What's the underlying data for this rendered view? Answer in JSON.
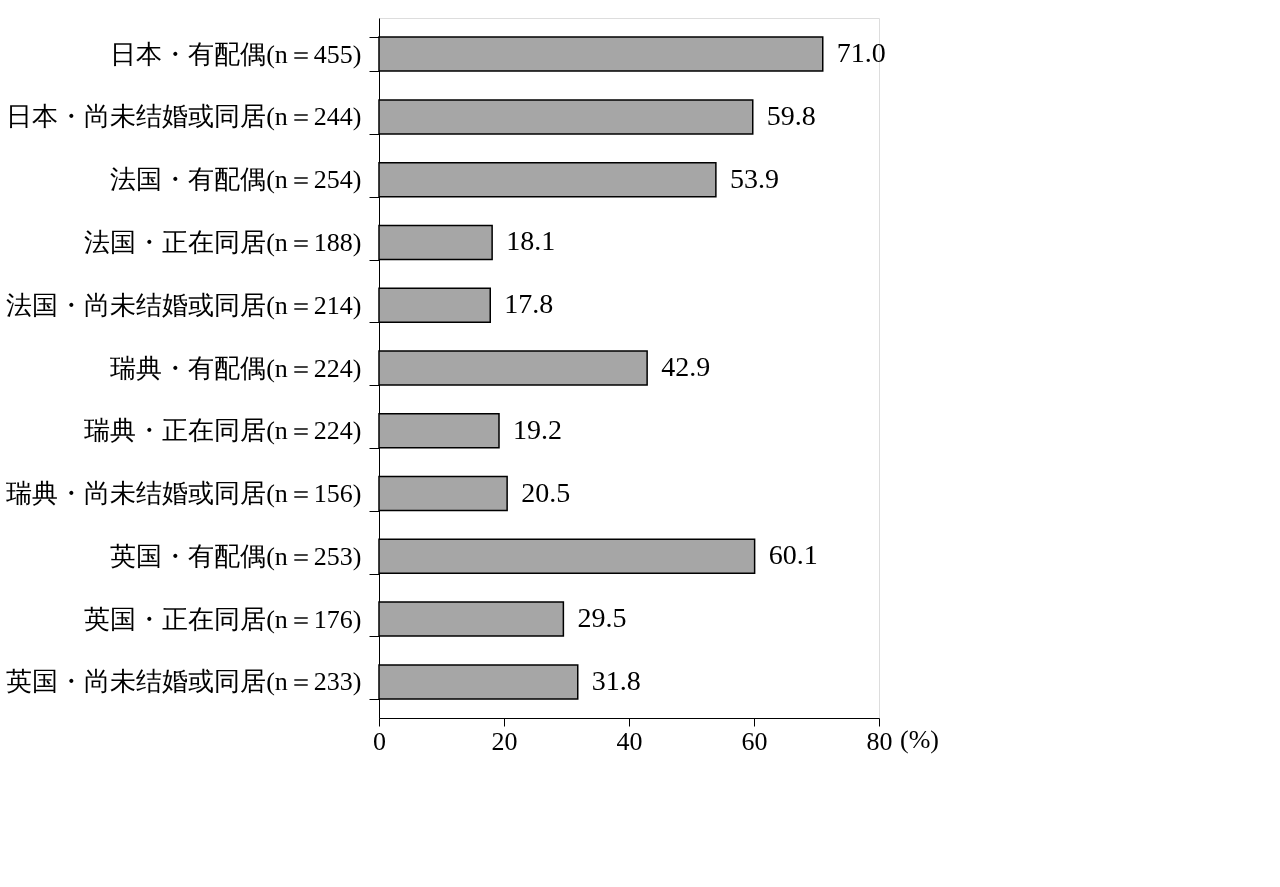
{
  "chart_data": {
    "type": "bar",
    "orientation": "horizontal",
    "categories": [
      "日本・有配偶(n＝455)",
      "日本・尚未结婚或同居(n＝244)",
      "法国・有配偶(n＝254)",
      "法国・正在同居(n＝188)",
      "法国・尚未结婚或同居(n＝214)",
      "瑞典・有配偶(n＝224)",
      "瑞典・正在同居(n＝224)",
      "瑞典・尚未结婚或同居(n＝156)",
      "英国・有配偶(n＝253)",
      "英国・正在同居(n＝176)",
      "英国・尚未结婚或同居(n＝233)"
    ],
    "values": [
      71.0,
      59.8,
      53.9,
      18.1,
      17.8,
      42.9,
      19.2,
      20.5,
      60.1,
      29.5,
      31.8
    ],
    "color": "#a6a6a6",
    "xlabel": "(%)",
    "value_labels": [
      "71.0",
      "59.8",
      "53.9",
      "18.1",
      "17.8",
      "42.9",
      "19.2",
      "20.5",
      "60.1",
      "29.5",
      "31.8"
    ],
    "xlim": [
      0,
      80
    ],
    "xticks": [
      0,
      20,
      40,
      60,
      80
    ],
    "grid": false
  }
}
